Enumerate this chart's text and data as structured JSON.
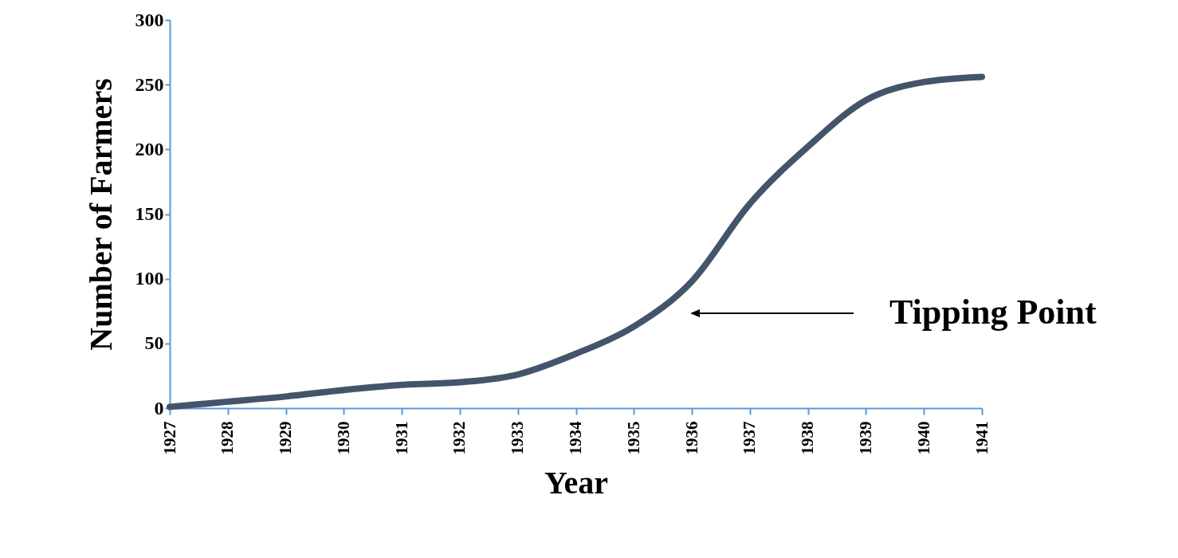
{
  "chart_data": {
    "type": "line",
    "xlabel": "Year",
    "ylabel": "Number of Farmers",
    "categories": [
      "1927",
      "1928",
      "1929",
      "1930",
      "1931",
      "1932",
      "1933",
      "1934",
      "1935",
      "1936",
      "1937",
      "1938",
      "1939",
      "1940",
      "1941"
    ],
    "series": [
      {
        "color": "#44546a",
        "values": [
          1,
          5,
          9,
          14,
          18,
          20,
          26,
          42,
          63,
          98,
          158,
          202,
          238,
          252,
          256
        ]
      }
    ],
    "ylim": [
      0,
      300
    ],
    "yticks": [
      0,
      50,
      100,
      150,
      200,
      250,
      300
    ],
    "annotations": [
      "Tipping Point"
    ]
  }
}
